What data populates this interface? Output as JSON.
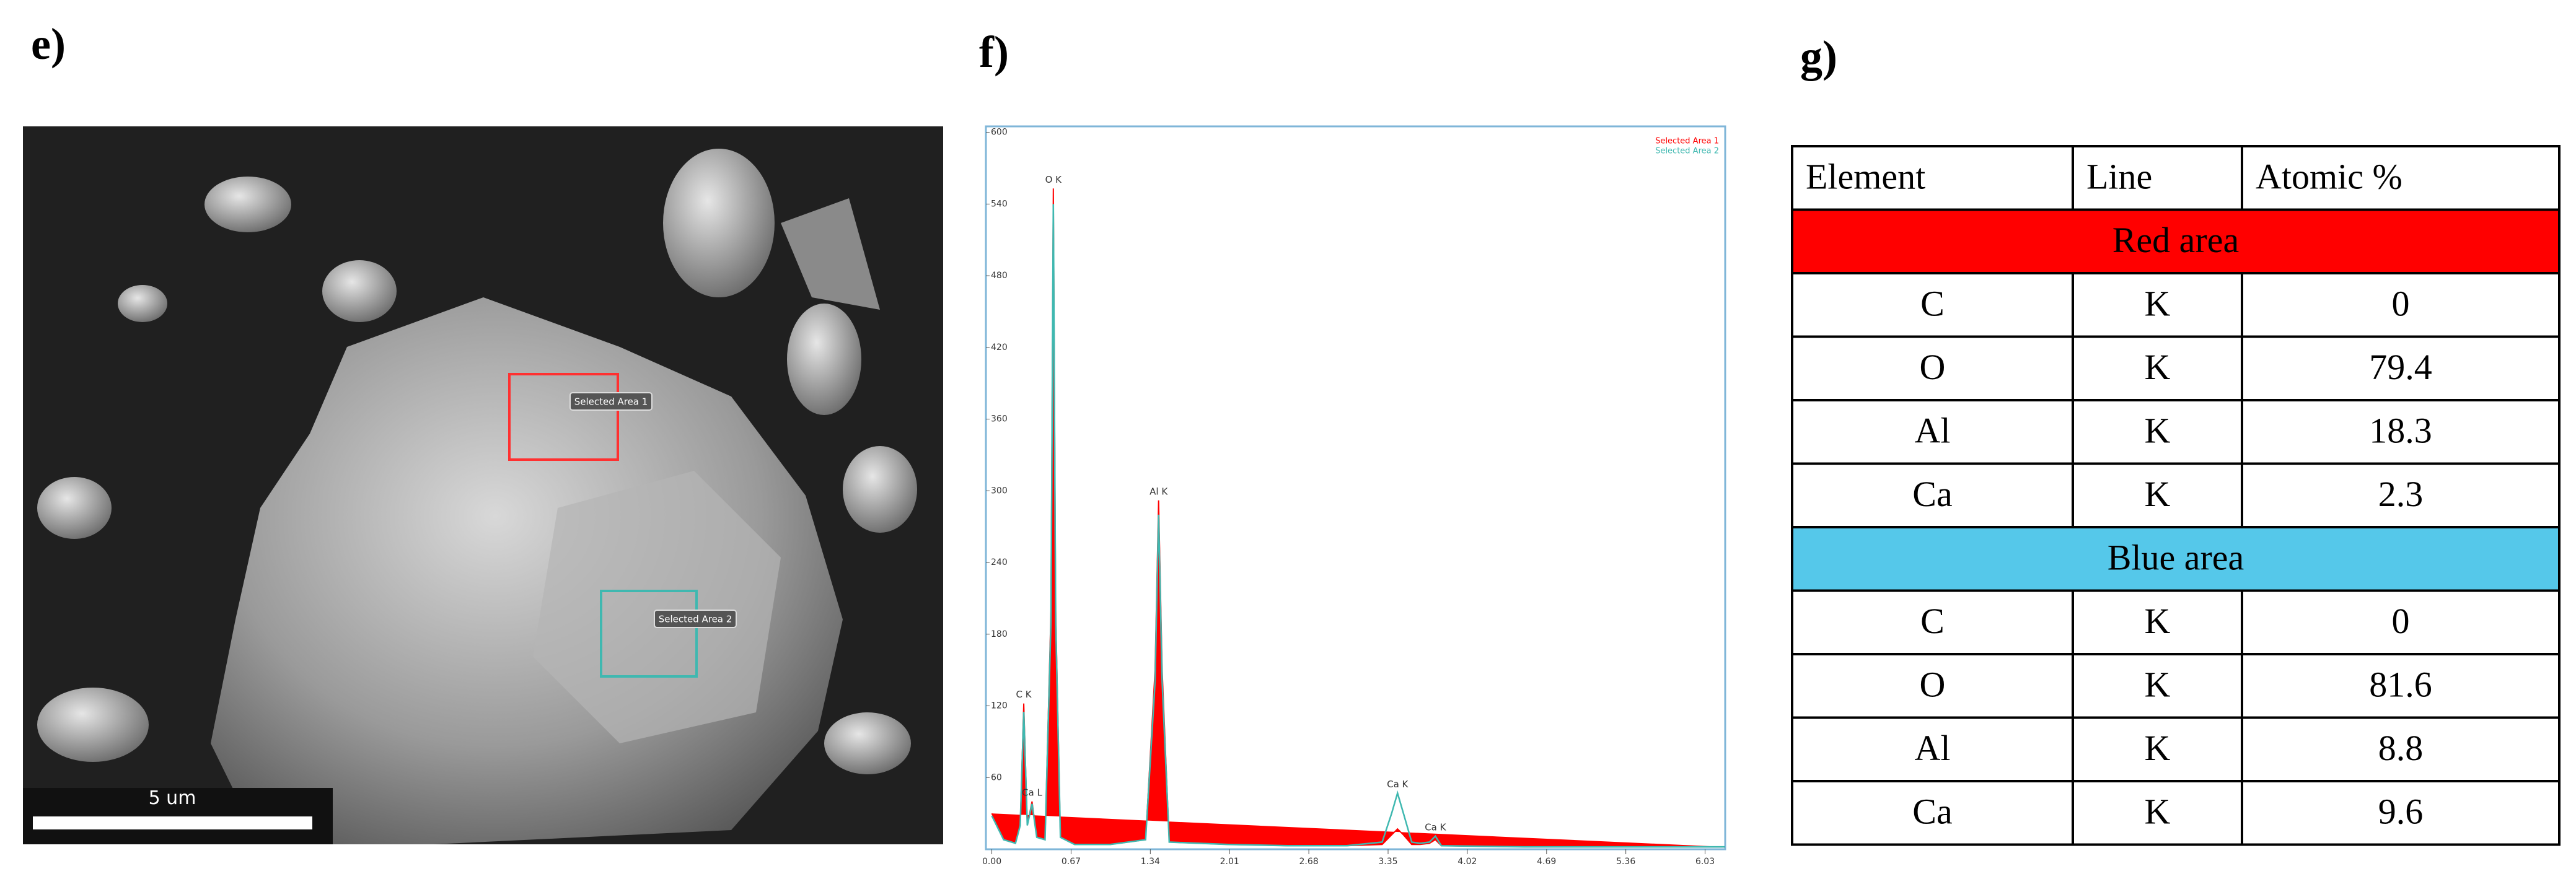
{
  "panels": {
    "e": "e)",
    "f": "f)",
    "g": "g)"
  },
  "sem": {
    "area_labels": [
      "Selected Area 1",
      "Selected Area 2"
    ],
    "scale_bar": "5 um"
  },
  "chart_data": {
    "type": "line",
    "x": [
      0.0,
      0.1,
      0.2,
      0.24,
      0.27,
      0.3,
      0.34,
      0.38,
      0.45,
      0.5,
      0.52,
      0.54,
      0.58,
      0.7,
      1.0,
      1.3,
      1.38,
      1.41,
      1.44,
      1.5,
      2.0,
      2.5,
      3.0,
      3.3,
      3.38,
      3.43,
      3.48,
      3.55,
      3.62,
      3.7,
      3.75,
      3.8,
      4.5,
      5.5,
      6.2
    ],
    "series": [
      {
        "name": "Selected Area 1",
        "color": "#ff0000",
        "values": [
          30,
          8,
          5,
          20,
          122,
          20,
          40,
          10,
          8,
          200,
          553,
          200,
          10,
          4,
          4,
          8,
          150,
          292,
          150,
          6,
          4,
          3,
          3,
          4,
          12,
          17,
          12,
          4,
          4,
          5,
          8,
          3,
          2,
          2,
          2
        ]
      },
      {
        "name": "Selected Area 2",
        "color": "#3fb8b0",
        "values": [
          28,
          8,
          5,
          20,
          115,
          20,
          38,
          10,
          8,
          190,
          540,
          190,
          10,
          4,
          4,
          8,
          140,
          280,
          140,
          6,
          4,
          3,
          3,
          6,
          30,
          47,
          30,
          6,
          5,
          6,
          11,
          3,
          2,
          2,
          2
        ]
      }
    ],
    "annotations": [
      {
        "text": "C K",
        "x": 0.27,
        "y": 122
      },
      {
        "text": "Ca L",
        "x": 0.34,
        "y": 40
      },
      {
        "text": "O K",
        "x": 0.52,
        "y": 553
      },
      {
        "text": "Al K",
        "x": 1.41,
        "y": 292
      },
      {
        "text": "Ca K",
        "x": 3.43,
        "y": 47
      },
      {
        "text": "Ca K",
        "x": 3.75,
        "y": 11
      }
    ],
    "xlim": [
      -0.05,
      6.2
    ],
    "xticks": [
      {
        "value": 0,
        "label": "0.00"
      },
      0.67,
      1.34,
      2.01,
      2.68,
      3.35,
      4.02,
      4.69,
      5.36,
      6.03
    ],
    "ylim": [
      0,
      605
    ],
    "yticks": [
      60,
      120,
      180,
      240,
      300,
      360,
      420,
      480,
      540,
      600
    ],
    "legend": "upper right"
  },
  "table": {
    "header": [
      "Element",
      "Line",
      "Atomic %"
    ],
    "sections": [
      {
        "title": "Red area",
        "color": "#ff0000",
        "rows": [
          [
            "C",
            "K",
            0
          ],
          [
            "O",
            "K",
            79.4
          ],
          [
            "Al",
            "K",
            18.3
          ],
          [
            "Ca",
            "K",
            2.3
          ]
        ]
      },
      {
        "title": "Blue area",
        "color": "#55c8ea",
        "rows": [
          [
            "C",
            "K",
            0
          ],
          [
            "O",
            "K",
            81.6
          ],
          [
            "Al",
            "K",
            8.8
          ],
          [
            "Ca",
            "K",
            9.6
          ]
        ]
      }
    ]
  }
}
